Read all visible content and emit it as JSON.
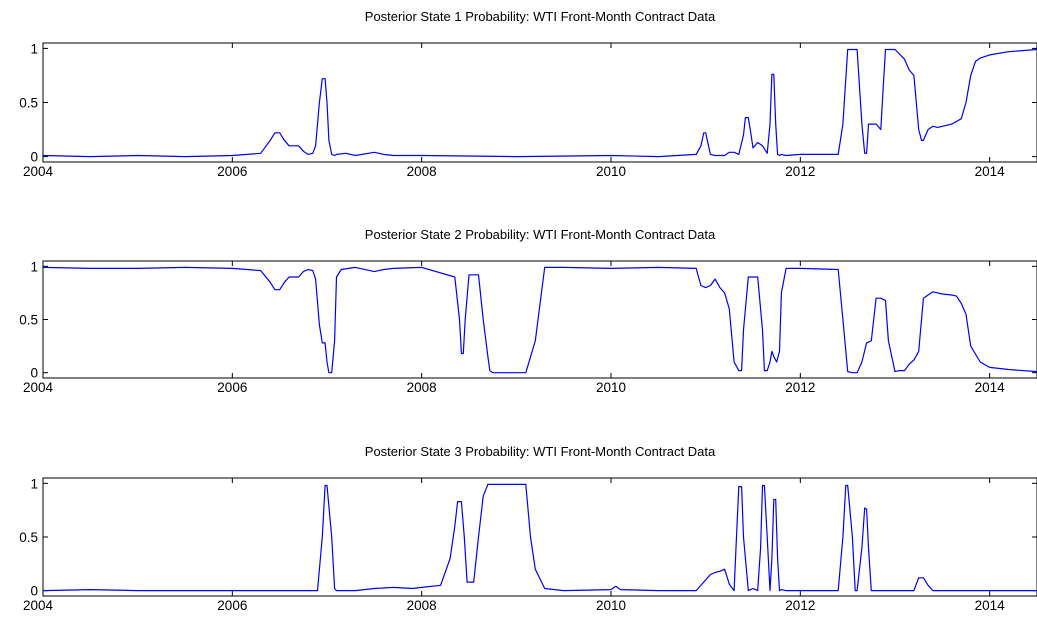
{
  "style": {
    "line_color": "#0000ff",
    "axis_color": "#000000",
    "background": "#ffffff"
  },
  "chart_data": [
    {
      "type": "line",
      "title": "Posterior State 1 Probability: WTI Front-Month Contract Data",
      "xlabel": "",
      "ylabel": "",
      "xlim": [
        2004,
        2014.5
      ],
      "ylim": [
        -0.05,
        1.05
      ],
      "xticks": [
        2004,
        2006,
        2008,
        2010,
        2012,
        2014
      ],
      "yticks": [
        0,
        0.5,
        1
      ],
      "grid": false,
      "series": [
        {
          "x": [
            2004,
            2004.5,
            2005,
            2005.5,
            2006,
            2006.3,
            2006.4,
            2006.45,
            2006.5,
            2006.55,
            2006.6,
            2006.7,
            2006.75,
            2006.8,
            2006.85,
            2006.88,
            2006.92,
            2006.95,
            2006.98,
            2007.0,
            2007.02,
            2007.05,
            2007.08,
            2007.1,
            2007.2,
            2007.3,
            2007.5,
            2007.6,
            2007.7,
            2008,
            2009,
            2010,
            2010.5,
            2010.9,
            2010.95,
            2010.98,
            2011.0,
            2011.03,
            2011.05,
            2011.1,
            2011.2,
            2011.25,
            2011.3,
            2011.35,
            2011.4,
            2011.42,
            2011.45,
            2011.48,
            2011.5,
            2011.55,
            2011.6,
            2011.65,
            2011.68,
            2011.7,
            2011.72,
            2011.74,
            2011.76,
            2011.78,
            2011.8,
            2011.85,
            2012,
            2012.4,
            2012.45,
            2012.5,
            2012.52,
            2012.55,
            2012.6,
            2012.65,
            2012.68,
            2012.7,
            2012.72,
            2012.75,
            2012.8,
            2012.85,
            2012.88,
            2012.9,
            2012.92,
            2012.95,
            2013.0,
            2013.1,
            2013.15,
            2013.2,
            2013.25,
            2013.28,
            2013.3,
            2013.35,
            2013.4,
            2013.45,
            2013.5,
            2013.6,
            2013.7,
            2013.75,
            2013.8,
            2013.85,
            2013.9,
            2014.0,
            2014.2,
            2014.5
          ],
          "y": [
            0.01,
            0.0,
            0.01,
            0.0,
            0.01,
            0.03,
            0.15,
            0.22,
            0.22,
            0.15,
            0.1,
            0.1,
            0.05,
            0.02,
            0.03,
            0.1,
            0.5,
            0.72,
            0.72,
            0.5,
            0.15,
            0.02,
            0.01,
            0.02,
            0.03,
            0.01,
            0.04,
            0.02,
            0.01,
            0.01,
            0.0,
            0.01,
            0.0,
            0.02,
            0.1,
            0.22,
            0.22,
            0.1,
            0.02,
            0.01,
            0.01,
            0.04,
            0.04,
            0.02,
            0.2,
            0.36,
            0.36,
            0.2,
            0.08,
            0.13,
            0.1,
            0.03,
            0.3,
            0.76,
            0.76,
            0.3,
            0.02,
            0.01,
            0.02,
            0.01,
            0.02,
            0.02,
            0.3,
            0.99,
            0.99,
            0.99,
            0.99,
            0.3,
            0.03,
            0.03,
            0.3,
            0.3,
            0.3,
            0.25,
            0.7,
            0.99,
            0.99,
            0.99,
            0.99,
            0.9,
            0.8,
            0.75,
            0.25,
            0.15,
            0.15,
            0.25,
            0.28,
            0.27,
            0.28,
            0.3,
            0.35,
            0.5,
            0.75,
            0.88,
            0.91,
            0.94,
            0.97,
            0.99
          ]
        }
      ]
    },
    {
      "type": "line",
      "title": "Posterior State 2 Probability: WTI Front-Month Contract Data",
      "xlabel": "",
      "ylabel": "",
      "xlim": [
        2004,
        2014.5
      ],
      "ylim": [
        -0.05,
        1.05
      ],
      "xticks": [
        2004,
        2006,
        2008,
        2010,
        2012,
        2014
      ],
      "yticks": [
        0,
        0.5,
        1
      ],
      "grid": false,
      "series": [
        {
          "x": [
            2004,
            2004.5,
            2005,
            2005.5,
            2006,
            2006.3,
            2006.4,
            2006.45,
            2006.5,
            2006.55,
            2006.6,
            2006.7,
            2006.75,
            2006.8,
            2006.85,
            2006.88,
            2006.92,
            2006.95,
            2006.98,
            2007.0,
            2007.02,
            2007.05,
            2007.08,
            2007.1,
            2007.15,
            2007.3,
            2007.5,
            2007.6,
            2007.7,
            2008,
            2008.35,
            2008.4,
            2008.42,
            2008.44,
            2008.46,
            2008.5,
            2008.55,
            2008.6,
            2008.65,
            2008.7,
            2008.72,
            2008.75,
            2008.8,
            2009,
            2009.1,
            2009.2,
            2009.3,
            2009.5,
            2010,
            2010.5,
            2010.9,
            2010.95,
            2011.0,
            2011.05,
            2011.1,
            2011.15,
            2011.2,
            2011.25,
            2011.3,
            2011.35,
            2011.38,
            2011.4,
            2011.45,
            2011.5,
            2011.55,
            2011.6,
            2011.62,
            2011.65,
            2011.68,
            2011.7,
            2011.72,
            2011.75,
            2011.78,
            2011.8,
            2011.85,
            2012.0,
            2012.4,
            2012.45,
            2012.5,
            2012.55,
            2012.6,
            2012.65,
            2012.7,
            2012.75,
            2012.8,
            2012.85,
            2012.9,
            2012.93,
            2013.0,
            2013.05,
            2013.1,
            2013.15,
            2013.2,
            2013.25,
            2013.3,
            2013.4,
            2013.5,
            2013.6,
            2013.65,
            2013.7,
            2013.75,
            2013.8,
            2013.9,
            2014.0,
            2014.2,
            2014.5
          ],
          "y": [
            0.99,
            0.98,
            0.98,
            0.99,
            0.98,
            0.96,
            0.85,
            0.78,
            0.78,
            0.85,
            0.9,
            0.9,
            0.95,
            0.97,
            0.96,
            0.88,
            0.45,
            0.28,
            0.28,
            0.1,
            0.0,
            0.0,
            0.3,
            0.9,
            0.97,
            0.99,
            0.95,
            0.97,
            0.98,
            0.99,
            0.9,
            0.5,
            0.18,
            0.18,
            0.5,
            0.92,
            0.92,
            0.92,
            0.5,
            0.15,
            0.02,
            0.0,
            0.0,
            0.0,
            0.0,
            0.3,
            0.99,
            0.99,
            0.98,
            0.99,
            0.98,
            0.82,
            0.8,
            0.82,
            0.88,
            0.8,
            0.75,
            0.6,
            0.1,
            0.02,
            0.02,
            0.4,
            0.9,
            0.9,
            0.9,
            0.4,
            0.02,
            0.02,
            0.1,
            0.2,
            0.15,
            0.1,
            0.2,
            0.75,
            0.98,
            0.98,
            0.97,
            0.5,
            0.01,
            0.0,
            0.0,
            0.1,
            0.28,
            0.3,
            0.7,
            0.7,
            0.68,
            0.3,
            0.01,
            0.02,
            0.02,
            0.08,
            0.12,
            0.2,
            0.7,
            0.76,
            0.74,
            0.73,
            0.72,
            0.65,
            0.55,
            0.25,
            0.1,
            0.05,
            0.03,
            0.01
          ]
        }
      ]
    },
    {
      "type": "line",
      "title": "Posterior State 3 Probability: WTI Front-Month Contract Data",
      "xlabel": "",
      "ylabel": "",
      "xlim": [
        2004,
        2014.5
      ],
      "ylim": [
        -0.05,
        1.05
      ],
      "xticks": [
        2004,
        2006,
        2008,
        2010,
        2012,
        2014
      ],
      "yticks": [
        0,
        0.5,
        1
      ],
      "grid": false,
      "series": [
        {
          "x": [
            2004,
            2004.5,
            2005,
            2006,
            2006.9,
            2006.95,
            2006.98,
            2007.0,
            2007.05,
            2007.08,
            2007.1,
            2007.3,
            2007.5,
            2007.7,
            2007.9,
            2008.0,
            2008.2,
            2008.3,
            2008.35,
            2008.38,
            2008.42,
            2008.45,
            2008.48,
            2008.5,
            2008.55,
            2008.6,
            2008.65,
            2008.7,
            2008.75,
            2008.8,
            2009.0,
            2009.1,
            2009.15,
            2009.2,
            2009.3,
            2009.5,
            2010,
            2010.05,
            2010.1,
            2010.5,
            2010.9,
            2011.0,
            2011.05,
            2011.1,
            2011.15,
            2011.2,
            2011.25,
            2011.3,
            2011.32,
            2011.35,
            2011.38,
            2011.4,
            2011.45,
            2011.5,
            2011.55,
            2011.58,
            2011.6,
            2011.62,
            2011.65,
            2011.68,
            2011.7,
            2011.72,
            2011.74,
            2011.76,
            2011.78,
            2011.8,
            2011.85,
            2012.0,
            2012.4,
            2012.45,
            2012.48,
            2012.5,
            2012.55,
            2012.58,
            2012.6,
            2012.65,
            2012.68,
            2012.7,
            2012.72,
            2012.75,
            2012.78,
            2012.8,
            2012.85,
            2013.0,
            2013.2,
            2013.22,
            2013.25,
            2013.3,
            2013.35,
            2013.4,
            2014.0,
            2014.5
          ],
          "y": [
            0.0,
            0.01,
            0.0,
            0.0,
            0.0,
            0.5,
            0.98,
            0.98,
            0.5,
            0.02,
            0.0,
            0.0,
            0.02,
            0.03,
            0.02,
            0.03,
            0.05,
            0.3,
            0.6,
            0.83,
            0.83,
            0.5,
            0.08,
            0.08,
            0.08,
            0.5,
            0.88,
            0.99,
            0.99,
            0.99,
            0.99,
            0.99,
            0.5,
            0.2,
            0.02,
            0.0,
            0.01,
            0.04,
            0.01,
            0.0,
            0.0,
            0.1,
            0.15,
            0.17,
            0.18,
            0.2,
            0.06,
            0.0,
            0.4,
            0.97,
            0.97,
            0.5,
            0.0,
            0.02,
            0.0,
            0.4,
            0.98,
            0.98,
            0.5,
            0.0,
            0.3,
            0.85,
            0.85,
            0.3,
            0.0,
            0.01,
            0.0,
            0.0,
            0.0,
            0.5,
            0.98,
            0.98,
            0.5,
            0.0,
            0.0,
            0.4,
            0.77,
            0.76,
            0.4,
            0.0,
            0.0,
            0.0,
            0.0,
            0.0,
            0.0,
            0.05,
            0.12,
            0.12,
            0.05,
            0.0,
            0.0,
            0.0
          ]
        }
      ]
    }
  ]
}
